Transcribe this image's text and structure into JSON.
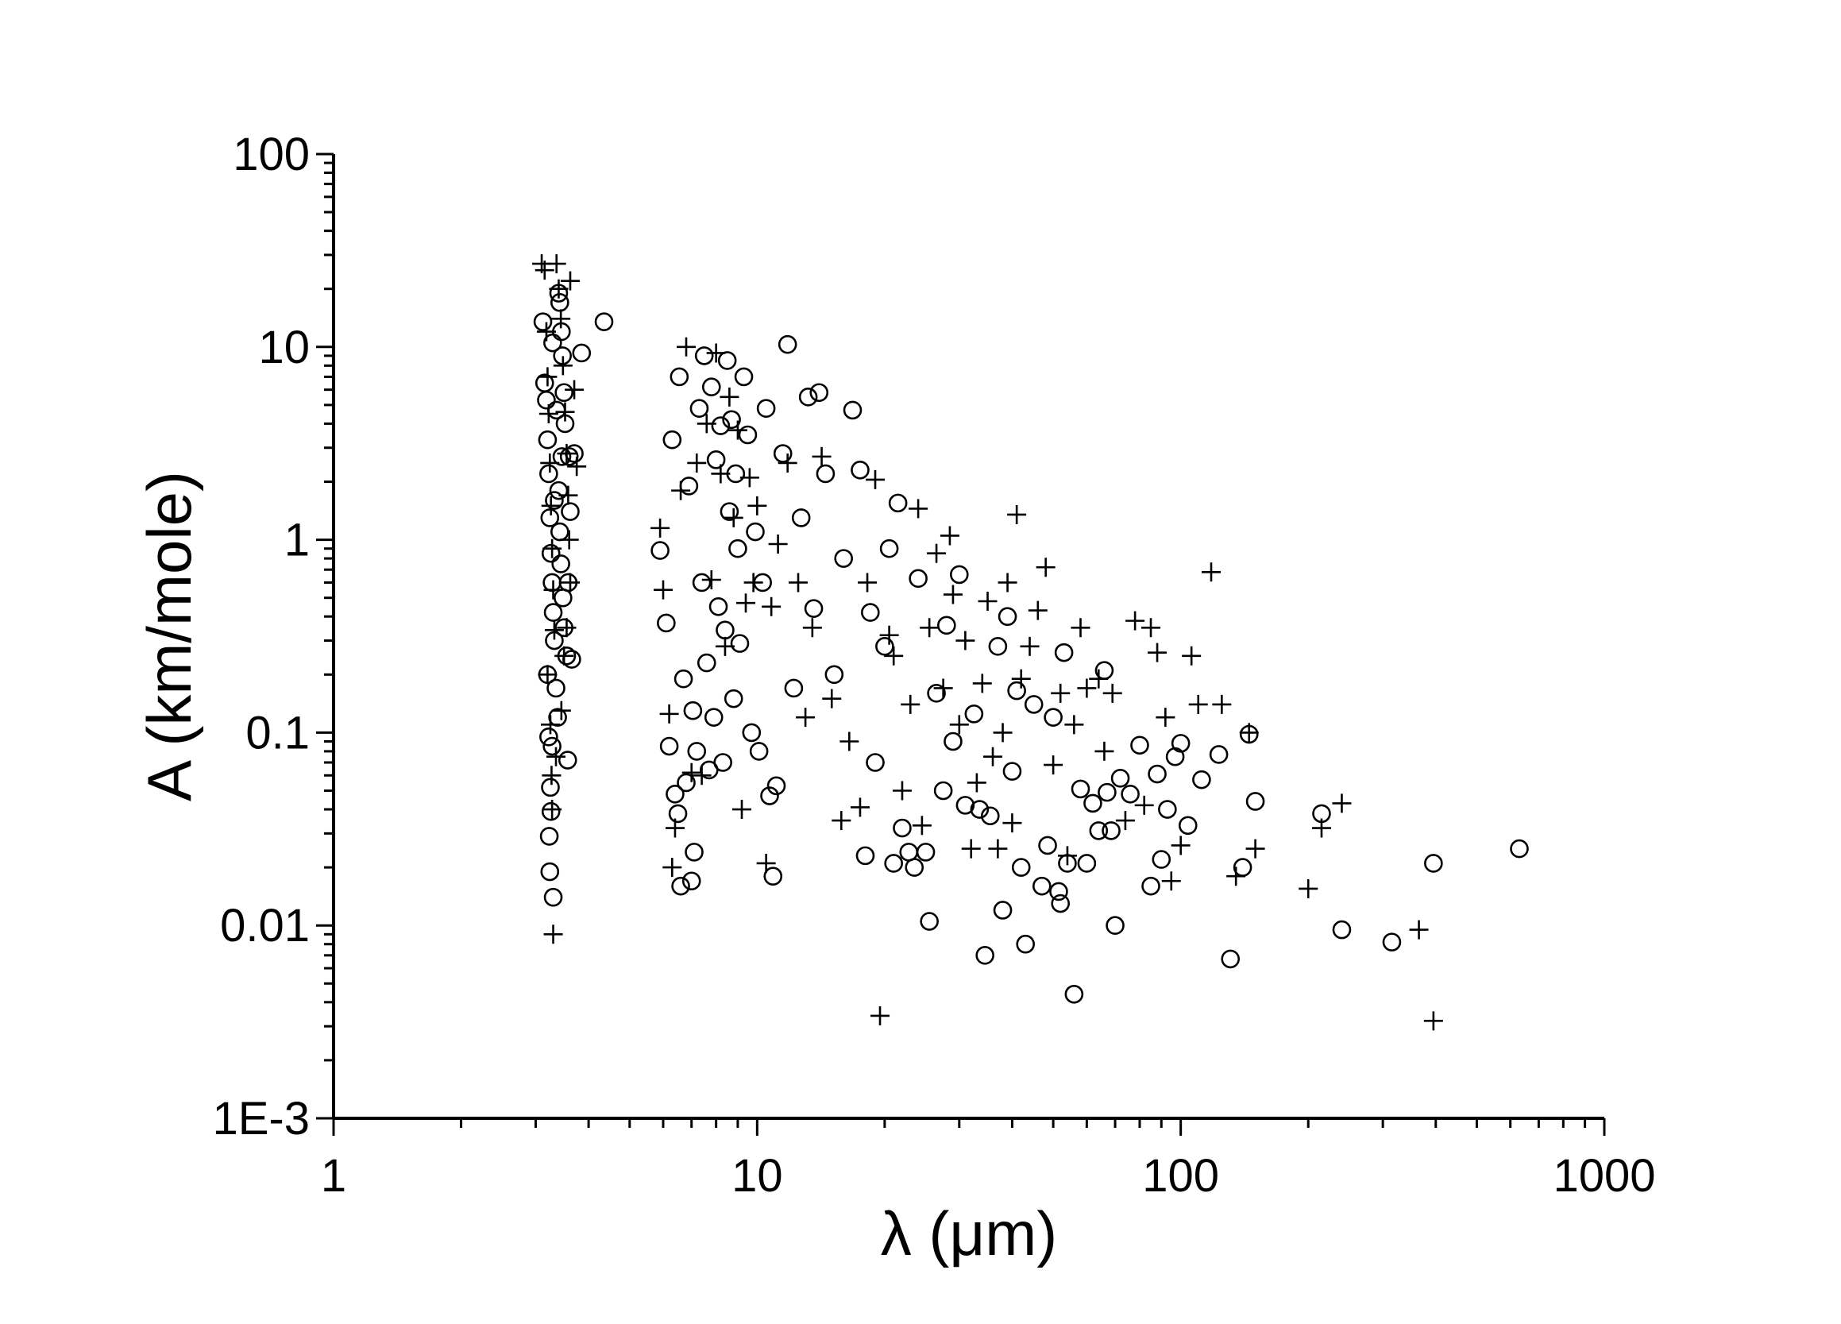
{
  "chart_data": {
    "type": "scatter",
    "title": "",
    "xlabel": "λ (μm)",
    "ylabel": "A (km/mole)",
    "x_scale": "log",
    "y_scale": "log",
    "xlim": [
      1,
      1000
    ],
    "ylim": [
      0.001,
      100
    ],
    "x_ticks": [
      "1",
      "10",
      "100",
      "1000"
    ],
    "y_ticks": [
      "1E-3",
      "0.01",
      "0.1",
      "1",
      "10",
      "100"
    ],
    "grid": false,
    "legend": "none",
    "colors": {
      "marker": "#000000",
      "axis": "#000000",
      "background": "#ffffff"
    },
    "series": [
      {
        "marker": "circle",
        "points": [
          [
            3.12,
            13.5
          ],
          [
            3.15,
            6.5
          ],
          [
            3.18,
            5.3
          ],
          [
            3.2,
            3.3
          ],
          [
            3.22,
            2.2
          ],
          [
            3.24,
            1.3
          ],
          [
            3.26,
            0.85
          ],
          [
            3.28,
            0.6
          ],
          [
            3.3,
            0.42
          ],
          [
            3.32,
            0.3
          ],
          [
            3.2,
            0.2
          ],
          [
            3.22,
            0.095
          ],
          [
            3.25,
            0.052
          ],
          [
            3.26,
            0.039
          ],
          [
            3.23,
            0.029
          ],
          [
            3.24,
            0.019
          ],
          [
            3.3,
            0.014
          ],
          [
            3.35,
            0.17
          ],
          [
            3.38,
            0.12
          ],
          [
            3.42,
            17
          ],
          [
            3.45,
            12
          ],
          [
            3.47,
            9
          ],
          [
            3.5,
            5.8
          ],
          [
            3.52,
            4
          ],
          [
            3.46,
            2.7
          ],
          [
            3.4,
            1.8
          ],
          [
            3.42,
            1.1
          ],
          [
            3.44,
            0.75
          ],
          [
            3.48,
            0.5
          ],
          [
            3.5,
            0.35
          ],
          [
            3.55,
            0.25
          ],
          [
            3.57,
            0.072
          ],
          [
            3.6,
            2.7
          ],
          [
            3.62,
            1.4
          ],
          [
            3.58,
            0.6
          ],
          [
            3.28,
            0.085
          ],
          [
            3.32,
            1.6
          ],
          [
            3.36,
            4.7
          ],
          [
            3.29,
            10.5
          ],
          [
            3.4,
            19
          ],
          [
            4.35,
            13.5
          ],
          [
            3.85,
            9.3
          ],
          [
            3.7,
            2.8
          ],
          [
            3.65,
            0.24
          ],
          [
            5.9,
            0.88
          ],
          [
            6.1,
            0.37
          ],
          [
            6.2,
            0.085
          ],
          [
            6.3,
            3.3
          ],
          [
            6.4,
            0.048
          ],
          [
            6.5,
            0.038
          ],
          [
            6.6,
            0.016
          ],
          [
            6.55,
            7
          ],
          [
            6.7,
            0.19
          ],
          [
            6.8,
            0.055
          ],
          [
            6.9,
            1.9
          ],
          [
            7.0,
            0.017
          ],
          [
            7.05,
            0.13
          ],
          [
            7.1,
            0.024
          ],
          [
            7.2,
            0.08
          ],
          [
            7.3,
            4.8
          ],
          [
            7.4,
            0.6
          ],
          [
            7.5,
            9
          ],
          [
            7.6,
            0.23
          ],
          [
            7.7,
            0.064
          ],
          [
            7.8,
            6.2
          ],
          [
            7.9,
            0.12
          ],
          [
            8.0,
            2.6
          ],
          [
            8.1,
            0.45
          ],
          [
            8.2,
            3.9
          ],
          [
            8.3,
            0.07
          ],
          [
            8.4,
            0.34
          ],
          [
            8.5,
            8.5
          ],
          [
            8.6,
            1.4
          ],
          [
            8.7,
            4.2
          ],
          [
            8.8,
            0.15
          ],
          [
            8.9,
            2.2
          ],
          [
            9.0,
            0.9
          ],
          [
            9.1,
            0.29
          ],
          [
            9.3,
            7
          ],
          [
            9.5,
            3.5
          ],
          [
            9.7,
            0.1
          ],
          [
            9.9,
            1.1
          ],
          [
            10.1,
            0.08
          ],
          [
            10.3,
            0.6
          ],
          [
            10.5,
            4.8
          ],
          [
            10.7,
            0.047
          ],
          [
            10.9,
            0.018
          ],
          [
            11.1,
            0.053
          ],
          [
            11.5,
            2.8
          ],
          [
            11.8,
            10.3
          ],
          [
            12.2,
            0.17
          ],
          [
            12.7,
            1.3
          ],
          [
            13.2,
            5.5
          ],
          [
            13.6,
            0.44
          ],
          [
            14.0,
            5.8
          ],
          [
            14.5,
            2.2
          ],
          [
            15.2,
            0.2
          ],
          [
            16.0,
            0.8
          ],
          [
            16.8,
            4.7
          ],
          [
            17.5,
            2.3
          ],
          [
            18.0,
            0.023
          ],
          [
            18.5,
            0.42
          ],
          [
            19.0,
            0.07
          ],
          [
            20.0,
            0.28
          ],
          [
            20.5,
            0.9
          ],
          [
            21.0,
            0.021
          ],
          [
            21.5,
            1.55
          ],
          [
            22.0,
            0.032
          ],
          [
            22.8,
            0.024
          ],
          [
            23.5,
            0.02
          ],
          [
            24.0,
            0.63
          ],
          [
            25.0,
            0.024
          ],
          [
            25.5,
            0.0105
          ],
          [
            26.5,
            0.16
          ],
          [
            27.5,
            0.05
          ],
          [
            28.0,
            0.36
          ],
          [
            29.0,
            0.09
          ],
          [
            30.0,
            0.66
          ],
          [
            31.0,
            0.042
          ],
          [
            32.5,
            0.125
          ],
          [
            33.5,
            0.04
          ],
          [
            34.5,
            0.007
          ],
          [
            35.5,
            0.037
          ],
          [
            37.0,
            0.28
          ],
          [
            38.0,
            0.012
          ],
          [
            39.0,
            0.4
          ],
          [
            40.0,
            0.063
          ],
          [
            41.0,
            0.165
          ],
          [
            42.0,
            0.02
          ],
          [
            43.0,
            0.008
          ],
          [
            45.0,
            0.14
          ],
          [
            47.0,
            0.016
          ],
          [
            48.5,
            0.026
          ],
          [
            50.0,
            0.12
          ],
          [
            51.5,
            0.015
          ],
          [
            52.0,
            0.013
          ],
          [
            53.0,
            0.26
          ],
          [
            54.0,
            0.021
          ],
          [
            56.0,
            0.0044
          ],
          [
            58.0,
            0.051
          ],
          [
            60.0,
            0.021
          ],
          [
            62.0,
            0.043
          ],
          [
            64.0,
            0.031
          ],
          [
            66.0,
            0.21
          ],
          [
            67.0,
            0.049
          ],
          [
            68.5,
            0.031
          ],
          [
            70.0,
            0.01
          ],
          [
            72.0,
            0.058
          ],
          [
            76.0,
            0.048
          ],
          [
            80.0,
            0.086
          ],
          [
            85.0,
            0.016
          ],
          [
            88.0,
            0.061
          ],
          [
            90.0,
            0.022
          ],
          [
            93.0,
            0.04
          ],
          [
            97.0,
            0.075
          ],
          [
            100.0,
            0.088
          ],
          [
            104.0,
            0.033
          ],
          [
            112.0,
            0.057
          ],
          [
            123.0,
            0.077
          ],
          [
            131.0,
            0.0067
          ],
          [
            140.0,
            0.02
          ],
          [
            145.0,
            0.098
          ],
          [
            150.0,
            0.044
          ],
          [
            215.0,
            0.038
          ],
          [
            240.0,
            0.0095
          ],
          [
            315.0,
            0.0082
          ],
          [
            395.0,
            0.021
          ],
          [
            630.0,
            0.025
          ]
        ]
      },
      {
        "marker": "plus",
        "points": [
          [
            3.1,
            27
          ],
          [
            3.15,
            25
          ],
          [
            3.18,
            12
          ],
          [
            3.2,
            7
          ],
          [
            3.22,
            4.5
          ],
          [
            3.24,
            2.5
          ],
          [
            3.26,
            1.5
          ],
          [
            3.28,
            0.9
          ],
          [
            3.3,
            0.55
          ],
          [
            3.32,
            0.34
          ],
          [
            3.2,
            0.2
          ],
          [
            3.25,
            0.11
          ],
          [
            3.27,
            0.06
          ],
          [
            3.3,
            0.009
          ],
          [
            3.36,
            27
          ],
          [
            3.4,
            20
          ],
          [
            3.44,
            14
          ],
          [
            3.48,
            8
          ],
          [
            3.52,
            4.6
          ],
          [
            3.55,
            2.8
          ],
          [
            3.58,
            1.7
          ],
          [
            3.6,
            1.0
          ],
          [
            3.62,
            0.6
          ],
          [
            3.55,
            0.35
          ],
          [
            3.62,
            22
          ],
          [
            3.7,
            6
          ],
          [
            3.75,
            2.4
          ],
          [
            3.5,
            0.25
          ],
          [
            3.45,
            0.13
          ],
          [
            3.35,
            0.075
          ],
          [
            3.28,
            0.04
          ],
          [
            5.9,
            1.15
          ],
          [
            6.0,
            0.55
          ],
          [
            6.2,
            0.125
          ],
          [
            6.3,
            0.02
          ],
          [
            6.4,
            0.032
          ],
          [
            6.6,
            1.8
          ],
          [
            6.8,
            10
          ],
          [
            7.0,
            0.062
          ],
          [
            7.2,
            2.5
          ],
          [
            7.4,
            0.06
          ],
          [
            7.6,
            4
          ],
          [
            7.8,
            0.62
          ],
          [
            8.0,
            9.3
          ],
          [
            8.2,
            2.2
          ],
          [
            8.4,
            0.28
          ],
          [
            8.6,
            5.5
          ],
          [
            8.8,
            1.3
          ],
          [
            9.0,
            3.7
          ],
          [
            9.2,
            0.04
          ],
          [
            9.4,
            0.47
          ],
          [
            9.6,
            2.1
          ],
          [
            9.8,
            0.6
          ],
          [
            10.0,
            1.5
          ],
          [
            10.5,
            0.021
          ],
          [
            10.8,
            0.45
          ],
          [
            11.2,
            0.95
          ],
          [
            11.8,
            2.5
          ],
          [
            12.5,
            0.6
          ],
          [
            13.0,
            0.12
          ],
          [
            13.5,
            0.35
          ],
          [
            14.2,
            2.7
          ],
          [
            15.0,
            0.15
          ],
          [
            15.8,
            0.035
          ],
          [
            16.5,
            0.09
          ],
          [
            17.5,
            0.041
          ],
          [
            18.2,
            0.6
          ],
          [
            19.0,
            2.05
          ],
          [
            19.5,
            0.0034
          ],
          [
            20.5,
            0.32
          ],
          [
            21.0,
            0.25
          ],
          [
            22.0,
            0.05
          ],
          [
            23.0,
            0.14
          ],
          [
            24.0,
            1.45
          ],
          [
            24.5,
            0.033
          ],
          [
            25.5,
            0.35
          ],
          [
            26.5,
            0.85
          ],
          [
            27.5,
            0.17
          ],
          [
            28.5,
            1.05
          ],
          [
            29.0,
            0.52
          ],
          [
            30.0,
            0.11
          ],
          [
            31.0,
            0.3
          ],
          [
            32.0,
            0.025
          ],
          [
            33.0,
            0.055
          ],
          [
            34.0,
            0.18
          ],
          [
            35.0,
            0.48
          ],
          [
            36.0,
            0.075
          ],
          [
            37.0,
            0.025
          ],
          [
            38.0,
            0.1
          ],
          [
            39.0,
            0.6
          ],
          [
            40.0,
            0.034
          ],
          [
            41.0,
            1.35
          ],
          [
            42.0,
            0.19
          ],
          [
            44.0,
            0.28
          ],
          [
            46.0,
            0.43
          ],
          [
            48.0,
            0.72
          ],
          [
            50.0,
            0.068
          ],
          [
            52.0,
            0.16
          ],
          [
            54.0,
            0.023
          ],
          [
            56.0,
            0.11
          ],
          [
            58.0,
            0.35
          ],
          [
            60.0,
            0.17
          ],
          [
            64.0,
            0.19
          ],
          [
            66.0,
            0.08
          ],
          [
            69.0,
            0.16
          ],
          [
            74.0,
            0.035
          ],
          [
            78.0,
            0.38
          ],
          [
            82.0,
            0.042
          ],
          [
            85.0,
            0.35
          ],
          [
            88.0,
            0.26
          ],
          [
            92.0,
            0.12
          ],
          [
            95.0,
            0.017
          ],
          [
            100.0,
            0.026
          ],
          [
            106.0,
            0.25
          ],
          [
            110.0,
            0.14
          ],
          [
            118.0,
            0.68
          ],
          [
            125.0,
            0.14
          ],
          [
            135.0,
            0.018
          ],
          [
            145.0,
            0.1
          ],
          [
            150.0,
            0.025
          ],
          [
            200.0,
            0.0155
          ],
          [
            215.0,
            0.032
          ],
          [
            240.0,
            0.043
          ],
          [
            365.0,
            0.0095
          ],
          [
            395.0,
            0.0032
          ]
        ]
      }
    ]
  }
}
